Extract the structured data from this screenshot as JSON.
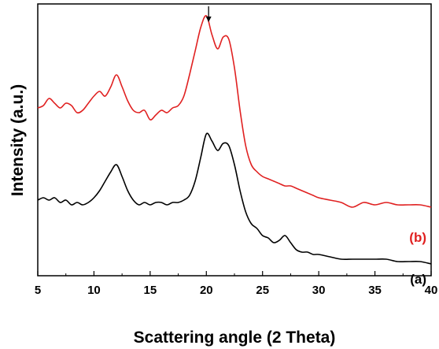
{
  "chart_data": {
    "type": "line",
    "title": "",
    "xlabel": "Scattering angle (2 Theta)",
    "ylabel": "Intensity (a.u.)",
    "xlim": [
      5,
      40
    ],
    "x_ticks": [
      "5",
      "10",
      "15",
      "20",
      "25",
      "30",
      "35",
      "40"
    ],
    "y_ticks_labeled": false,
    "grid": false,
    "annotation": {
      "type": "arrow",
      "x": 20.2,
      "direction": "down"
    },
    "series": [
      {
        "name": "(a)",
        "color": "#000000",
        "x": [
          5,
          5.5,
          6,
          6.5,
          7,
          7.5,
          8,
          8.5,
          9,
          9.5,
          10,
          10.5,
          11,
          11.5,
          12,
          12.5,
          13,
          13.5,
          14,
          14.5,
          15,
          15.5,
          16,
          16.5,
          17,
          17.5,
          18,
          18.5,
          19,
          19.5,
          20,
          20.5,
          21,
          21.5,
          22,
          22.5,
          23,
          23.5,
          24,
          24.5,
          25,
          25.5,
          26,
          26.5,
          27,
          27.5,
          28,
          28.5,
          29,
          29.5,
          30,
          31,
          32,
          33,
          34,
          35,
          36,
          37,
          38,
          39,
          40
        ],
        "y": [
          0.32,
          0.33,
          0.32,
          0.33,
          0.31,
          0.32,
          0.3,
          0.31,
          0.3,
          0.31,
          0.33,
          0.36,
          0.4,
          0.44,
          0.47,
          0.42,
          0.36,
          0.32,
          0.3,
          0.31,
          0.3,
          0.31,
          0.31,
          0.3,
          0.31,
          0.31,
          0.32,
          0.34,
          0.4,
          0.5,
          0.6,
          0.57,
          0.53,
          0.56,
          0.55,
          0.47,
          0.36,
          0.27,
          0.22,
          0.2,
          0.17,
          0.16,
          0.14,
          0.15,
          0.17,
          0.14,
          0.11,
          0.1,
          0.1,
          0.09,
          0.09,
          0.08,
          0.07,
          0.07,
          0.07,
          0.07,
          0.07,
          0.06,
          0.06,
          0.06,
          0.05
        ]
      },
      {
        "name": "(b)",
        "color": "#e02020",
        "x": [
          5,
          5.5,
          6,
          6.5,
          7,
          7.5,
          8,
          8.5,
          9,
          9.5,
          10,
          10.5,
          11,
          11.5,
          12,
          12.5,
          13,
          13.5,
          14,
          14.5,
          15,
          15.5,
          16,
          16.5,
          17,
          17.5,
          18,
          18.5,
          19,
          19.5,
          20,
          20.5,
          21,
          21.5,
          22,
          22.5,
          23,
          23.5,
          24,
          24.5,
          25,
          25.5,
          26,
          26.5,
          27,
          27.5,
          28,
          28.5,
          29,
          29.5,
          30,
          31,
          32,
          33,
          34,
          35,
          36,
          37,
          38,
          39,
          40
        ],
        "y": [
          0.71,
          0.72,
          0.75,
          0.73,
          0.71,
          0.73,
          0.72,
          0.69,
          0.7,
          0.73,
          0.76,
          0.78,
          0.76,
          0.8,
          0.85,
          0.8,
          0.74,
          0.7,
          0.69,
          0.7,
          0.66,
          0.68,
          0.7,
          0.69,
          0.71,
          0.72,
          0.76,
          0.85,
          0.95,
          1.05,
          1.1,
          1.02,
          0.96,
          1.01,
          1.0,
          0.88,
          0.7,
          0.55,
          0.47,
          0.44,
          0.42,
          0.41,
          0.4,
          0.39,
          0.38,
          0.38,
          0.37,
          0.36,
          0.35,
          0.34,
          0.33,
          0.32,
          0.31,
          0.29,
          0.31,
          0.3,
          0.31,
          0.3,
          0.3,
          0.3,
          0.29
        ]
      }
    ],
    "ylim": [
      0,
      1.15
    ]
  }
}
